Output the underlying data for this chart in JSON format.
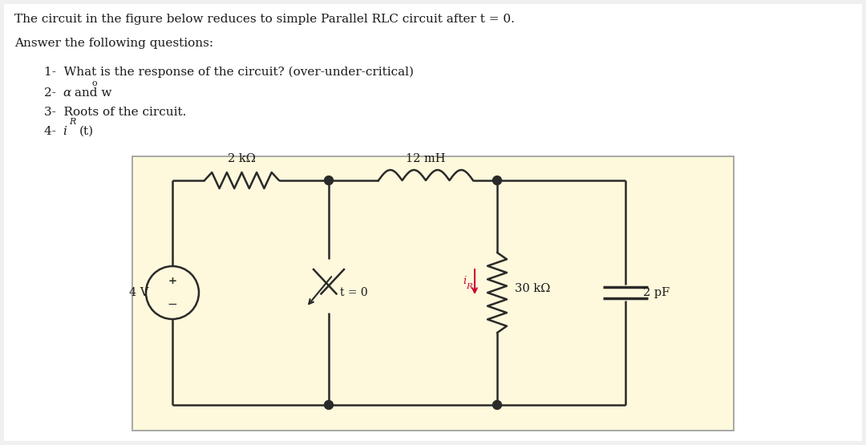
{
  "title_line": "The circuit in the figure below reduces to simple Parallel RLC circuit after t = 0.",
  "subtitle": "Answer the following questions:",
  "q1": "1-  What is the response of the circuit? (over-under-critical)",
  "q2_pre": "2-  ",
  "q2_alpha": "α",
  "q2_mid": " and w",
  "q2_sub": "o",
  "q3": "3-  Roots of the circuit.",
  "q4_pre": "4-  ",
  "q4_i": "i",
  "q4_R": "R",
  "q4_post": "(t)",
  "bg_color": "#f0f0f0",
  "page_bg": "#ffffff",
  "circuit_bg": "#fef9dc",
  "wire_color": "#2a2a2a",
  "text_color": "#1a1a1a",
  "iR_color": "#cc0033",
  "resistor_label": "2 kΩ",
  "inductor_label": "12 mH",
  "switch_label": "t = 0",
  "source_label": "4 V",
  "R2_label": "30 kΩ",
  "C_label": "2 pF",
  "figw": 10.8,
  "figh": 5.55
}
